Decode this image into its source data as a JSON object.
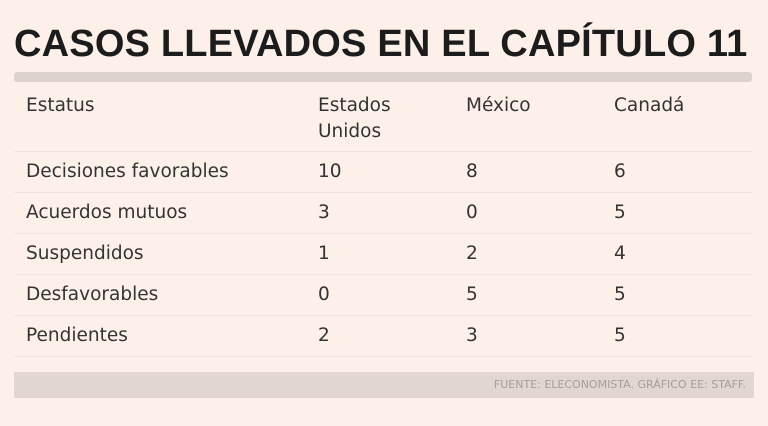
{
  "title": "CASOS LLEVADOS EN EL CAPÍTULO 11",
  "table": {
    "headers": [
      "Estatus",
      "Estados Unidos",
      "México",
      "Canadá"
    ],
    "rows": [
      [
        "Decisiones favorables",
        "10",
        "8",
        "6"
      ],
      [
        "Acuerdos mutuos",
        "3",
        "0",
        "5"
      ],
      [
        "Suspendidos",
        "1",
        "2",
        "4"
      ],
      [
        "Desfavorables",
        "0",
        "5",
        "5"
      ],
      [
        "Pendientes",
        "2",
        "3",
        "5"
      ]
    ]
  },
  "source": "FUENTE: ELECONOMISTA. GRÁFICO EE: STAFF.",
  "colors": {
    "background": "#fdf0e9",
    "rule": "#ddd3cd",
    "source_bar": "#e2d7d0"
  }
}
